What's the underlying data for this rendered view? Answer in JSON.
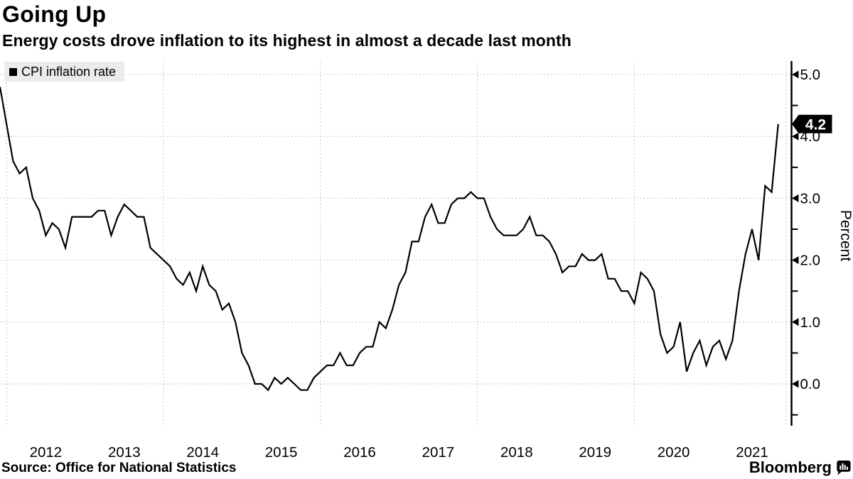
{
  "header": {
    "title": "Going Up",
    "subtitle": "Energy costs drove inflation to its highest in almost a decade last month"
  },
  "footer": {
    "source": "Source: Office for National Statistics",
    "brand": "Bloomberg"
  },
  "chart_data": {
    "type": "line",
    "title": "Going Up",
    "subtitle": "Energy costs drove inflation to its highest in almost a decade last month",
    "ylabel": "Percent",
    "ylim": [
      -0.65,
      5.25
    ],
    "grid": "dotted",
    "legend_position": "top-left",
    "line_color": "#000000",
    "grid_color": "#c6c6c6",
    "series": [
      {
        "name": "CPI inflation rate",
        "start": "2011-11",
        "freq": "monthly",
        "values": [
          4.8,
          4.2,
          3.6,
          3.4,
          3.5,
          3.0,
          2.8,
          2.4,
          2.6,
          2.5,
          2.2,
          2.7,
          2.7,
          2.7,
          2.7,
          2.8,
          2.8,
          2.4,
          2.7,
          2.9,
          2.8,
          2.7,
          2.7,
          2.2,
          2.1,
          2.0,
          1.9,
          1.7,
          1.6,
          1.8,
          1.5,
          1.9,
          1.6,
          1.5,
          1.2,
          1.3,
          1.0,
          0.5,
          0.3,
          0.0,
          0.0,
          -0.1,
          0.1,
          0.0,
          0.1,
          0.0,
          -0.1,
          -0.1,
          0.1,
          0.2,
          0.3,
          0.3,
          0.5,
          0.3,
          0.3,
          0.5,
          0.6,
          0.6,
          1.0,
          0.9,
          1.2,
          1.6,
          1.8,
          2.3,
          2.3,
          2.7,
          2.9,
          2.6,
          2.6,
          2.9,
          3.0,
          3.0,
          3.1,
          3.0,
          3.0,
          2.7,
          2.5,
          2.4,
          2.4,
          2.4,
          2.5,
          2.7,
          2.4,
          2.4,
          2.3,
          2.1,
          1.8,
          1.9,
          1.9,
          2.1,
          2.0,
          2.0,
          2.1,
          1.7,
          1.7,
          1.5,
          1.5,
          1.3,
          1.8,
          1.7,
          1.5,
          0.8,
          0.5,
          0.6,
          1.0,
          0.2,
          0.5,
          0.7,
          0.3,
          0.6,
          0.7,
          0.4,
          0.7,
          1.5,
          2.1,
          2.5,
          2.0,
          3.2,
          3.1,
          4.2
        ]
      }
    ],
    "y_ticks": [
      {
        "value": 0,
        "label": "0.0"
      },
      {
        "value": 1,
        "label": "1.0"
      },
      {
        "value": 2,
        "label": "2.0"
      },
      {
        "value": 3,
        "label": "3.0"
      },
      {
        "value": 4,
        "label": "4.0"
      },
      {
        "value": 5,
        "label": "5.0"
      }
    ],
    "y_gridlines": [
      0,
      1,
      2,
      3,
      4,
      5
    ],
    "y_minor_ticks": [
      -0.5,
      0.5,
      1.5,
      2.5,
      3.5,
      4.5
    ],
    "x_ticks": [
      "2012",
      "2013",
      "2014",
      "2015",
      "2016",
      "2017",
      "2018",
      "2019",
      "2020",
      "2021"
    ],
    "x_gridline_month_index": [
      1,
      25,
      49,
      73,
      97,
      121
    ],
    "annotation": {
      "value": 4.2,
      "label": "4.2",
      "bg": "#000000",
      "fg": "#ffffff"
    }
  }
}
